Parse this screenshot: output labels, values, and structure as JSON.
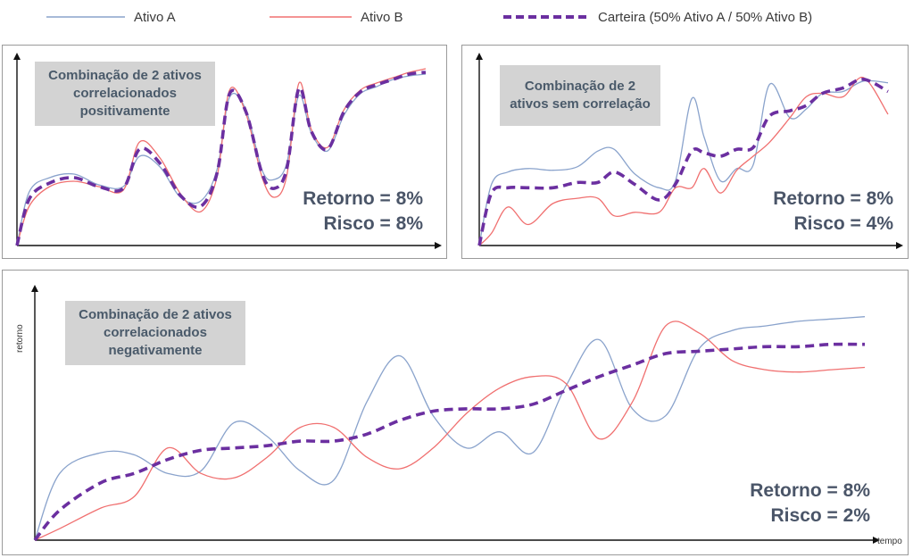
{
  "legend": {
    "items": [
      {
        "label": "Ativo A",
        "color": "#8aa3cc",
        "style": "solid"
      },
      {
        "label": "Ativo B",
        "color": "#f07070",
        "style": "solid"
      },
      {
        "label": "Carteira (50% Ativo A / 50% Ativo B)",
        "color": "#6b2fa0",
        "style": "dashed"
      }
    ]
  },
  "panels": {
    "positive": {
      "title": "Combinação de 2 ativos correlacionados positivamente",
      "return_text": "Retorno = 8%",
      "risk_text": "Risco = 8%"
    },
    "uncorrelated": {
      "title": "Combinação de 2 ativos sem correlação",
      "return_text": "Retorno = 8%",
      "risk_text": "Risco = 4%"
    },
    "negative": {
      "title": "Combinação de 2 ativos correlacionados negativamente",
      "return_text": "Retorno = 8%",
      "risk_text": "Risco = 2%",
      "xlabel": "tempo",
      "ylabel": "retorno"
    }
  },
  "chart_data": [
    {
      "type": "line",
      "title": "Combinação de 2 ativos correlacionados positivamente",
      "xlim": [
        0,
        100
      ],
      "ylim": [
        0,
        100
      ],
      "series": [
        {
          "name": "Ativo A",
          "x": [
            0,
            3,
            8,
            14,
            20,
            26,
            30,
            35,
            40,
            45,
            49,
            52,
            56,
            60,
            63,
            66,
            69,
            72,
            76,
            80,
            84,
            88,
            92,
            96,
            100
          ],
          "y": [
            0,
            30,
            38,
            40,
            34,
            33,
            50,
            44,
            27,
            25,
            43,
            83,
            76,
            42,
            37,
            46,
            84,
            63,
            53,
            73,
            85,
            89,
            93,
            95,
            96
          ]
        },
        {
          "name": "Ativo B",
          "x": [
            0,
            3,
            8,
            14,
            20,
            26,
            30,
            35,
            40,
            45,
            49,
            52,
            56,
            60,
            63,
            66,
            69,
            72,
            76,
            80,
            84,
            88,
            92,
            96,
            100
          ],
          "y": [
            0,
            22,
            33,
            36,
            33,
            31,
            58,
            49,
            29,
            19,
            39,
            87,
            74,
            38,
            27,
            39,
            91,
            65,
            55,
            76,
            87,
            91,
            94,
            97,
            99
          ]
        },
        {
          "name": "Carteira (50% Ativo A / 50% Ativo B)",
          "x": [
            0,
            3,
            8,
            14,
            20,
            26,
            30,
            35,
            40,
            45,
            49,
            52,
            56,
            60,
            63,
            66,
            69,
            72,
            76,
            80,
            84,
            88,
            92,
            96,
            100
          ],
          "y": [
            0,
            26,
            35,
            38,
            33,
            32,
            54,
            46,
            28,
            22,
            41,
            85,
            75,
            40,
            32,
            43,
            88,
            64,
            54,
            75,
            86,
            90,
            93,
            96,
            97
          ]
        }
      ]
    },
    {
      "type": "line",
      "title": "Combinação de 2 ativos sem correlação",
      "xlim": [
        0,
        100
      ],
      "ylim": [
        0,
        100
      ],
      "series": [
        {
          "name": "Ativo A",
          "x": [
            0,
            3,
            7,
            12,
            18,
            24,
            29,
            33,
            38,
            44,
            48,
            52,
            55,
            59,
            63,
            67,
            71,
            76,
            80,
            84,
            89,
            94,
            100
          ],
          "y": [
            0,
            35,
            42,
            44,
            43,
            45,
            54,
            55,
            41,
            33,
            37,
            84,
            62,
            37,
            44,
            46,
            92,
            73,
            78,
            87,
            88,
            94,
            93
          ]
        },
        {
          "name": "Ativo B",
          "x": [
            0,
            3,
            7,
            12,
            18,
            24,
            29,
            33,
            38,
            44,
            48,
            52,
            55,
            59,
            63,
            67,
            71,
            76,
            80,
            84,
            89,
            94,
            100
          ],
          "y": [
            0,
            7,
            22,
            12,
            24,
            27,
            27,
            17,
            19,
            19,
            33,
            33,
            44,
            30,
            43,
            51,
            59,
            73,
            85,
            87,
            85,
            96,
            75
          ]
        },
        {
          "name": "Carteira (50% Ativo A / 50% Ativo B)",
          "x": [
            0,
            3,
            7,
            12,
            18,
            24,
            29,
            33,
            38,
            44,
            48,
            52,
            55,
            59,
            63,
            67,
            71,
            76,
            80,
            84,
            89,
            94,
            100
          ],
          "y": [
            0,
            30,
            33,
            33,
            33,
            36,
            36,
            42,
            35,
            26,
            35,
            54,
            53,
            51,
            55,
            56,
            74,
            77,
            80,
            87,
            90,
            95,
            88
          ]
        }
      ]
    },
    {
      "type": "line",
      "title": "Combinação de 2 ativos correlacionados negativamente",
      "xlabel": "tempo",
      "ylabel": "retorno",
      "xlim": [
        0,
        100
      ],
      "ylim": [
        0,
        100
      ],
      "series": [
        {
          "name": "Ativo A",
          "x": [
            0,
            3,
            8,
            12,
            16,
            20,
            24,
            28,
            32,
            36,
            40,
            44,
            48,
            52,
            56,
            60,
            64,
            68,
            72,
            76,
            80,
            84,
            88,
            92,
            96,
            100
          ],
          "y": [
            0,
            29,
            38,
            37,
            29,
            30,
            51,
            45,
            30,
            26,
            60,
            80,
            54,
            40,
            47,
            38,
            67,
            87,
            57,
            54,
            83,
            91,
            93,
            95,
            96,
            97
          ]
        },
        {
          "name": "Ativo B",
          "x": [
            0,
            3,
            8,
            12,
            16,
            20,
            24,
            28,
            32,
            36,
            40,
            44,
            48,
            52,
            56,
            60,
            64,
            68,
            72,
            76,
            80,
            84,
            88,
            92,
            96,
            100
          ],
          "y": [
            0,
            5,
            14,
            19,
            40,
            29,
            27,
            36,
            49,
            49,
            36,
            31,
            40,
            55,
            66,
            71,
            68,
            44,
            60,
            93,
            90,
            78,
            74,
            73,
            74,
            75
          ]
        },
        {
          "name": "Carteira (50% Ativo A / 50% Ativo B)",
          "x": [
            0,
            3,
            8,
            12,
            16,
            20,
            24,
            28,
            32,
            36,
            40,
            44,
            48,
            52,
            56,
            60,
            64,
            68,
            72,
            76,
            80,
            84,
            88,
            92,
            96,
            100
          ],
          "y": [
            0,
            13,
            25,
            29,
            35,
            39,
            40,
            41,
            43,
            43,
            46,
            52,
            56,
            57,
            57,
            59,
            65,
            71,
            76,
            81,
            82,
            83,
            84,
            84,
            85,
            85
          ]
        }
      ]
    }
  ]
}
